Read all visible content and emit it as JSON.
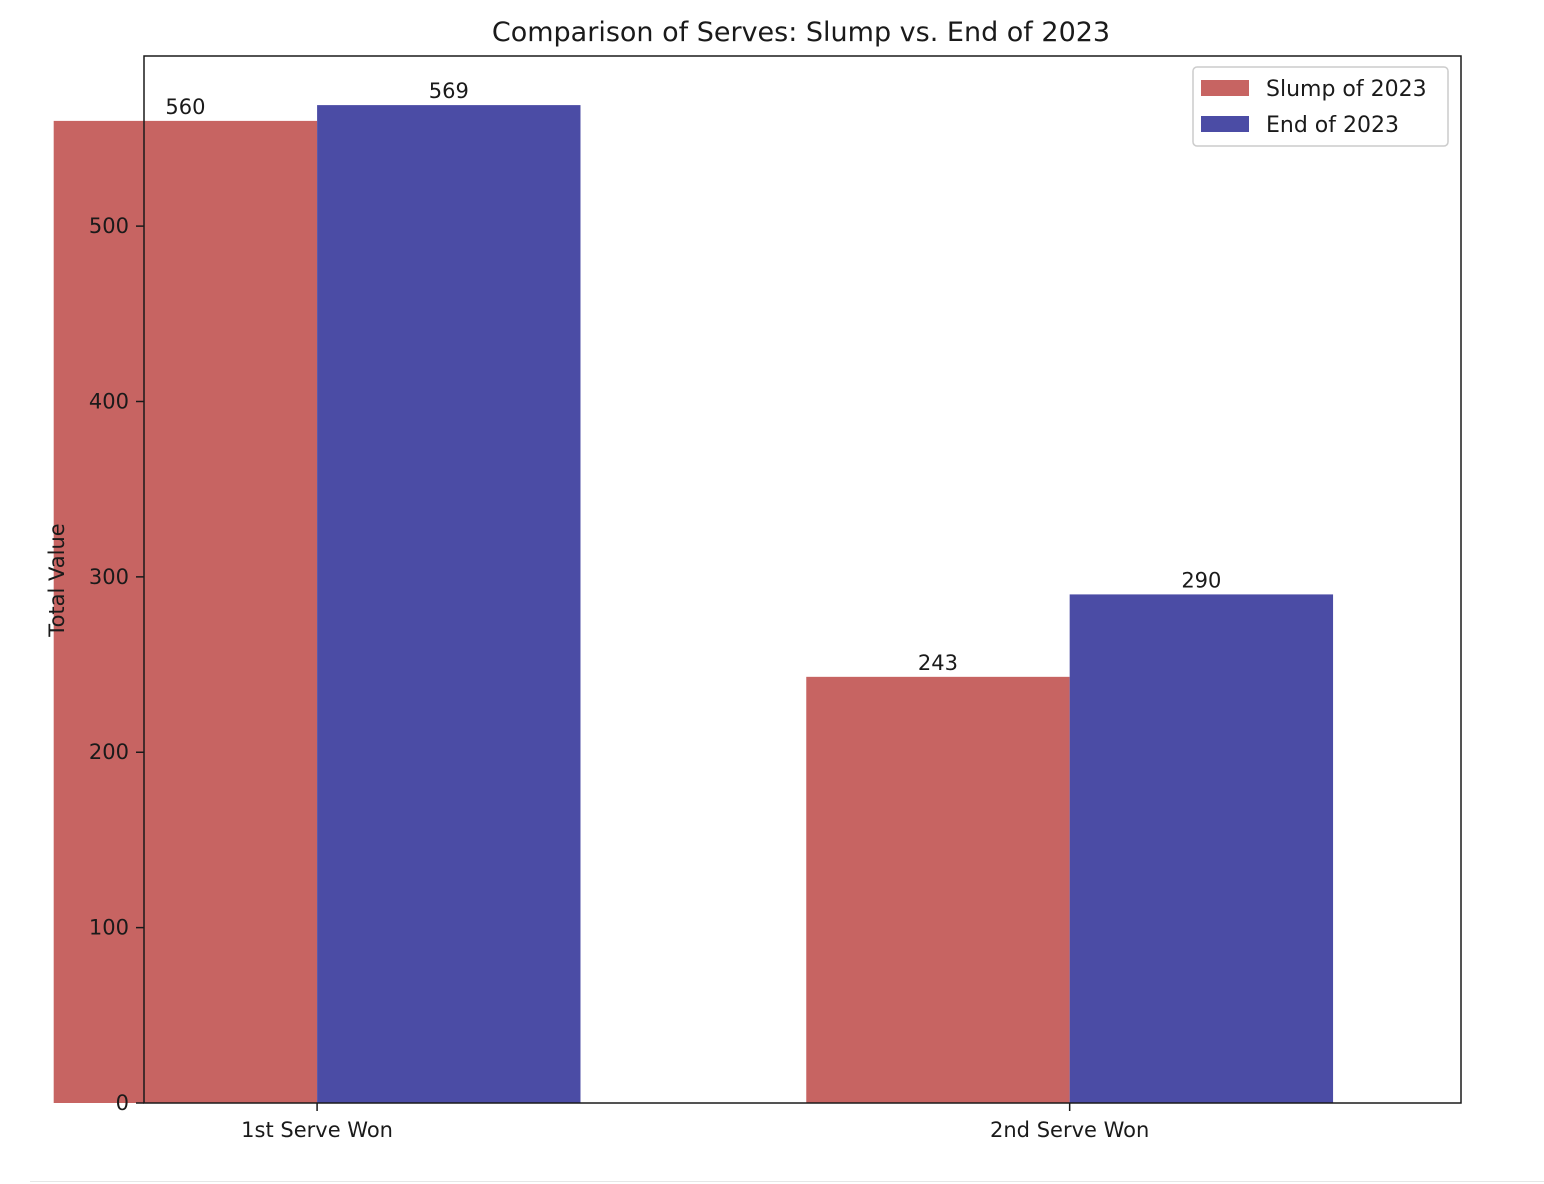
{
  "chart_data": {
    "type": "bar",
    "title": "Comparison of Serves: Slump vs. End of 2023",
    "xlabel": "",
    "ylabel": "Total Value",
    "categories": [
      "1st Serve Won",
      "2nd Serve Won"
    ],
    "series": [
      {
        "name": "Slump of 2023",
        "values": [
          560,
          243
        ],
        "color": "#c76462"
      },
      {
        "name": "End of 2023",
        "values": [
          569,
          290
        ],
        "color": "#4b4ca5"
      }
    ],
    "ylim": [
      0,
      597
    ],
    "yticks": [
      0,
      100,
      200,
      300,
      400,
      500
    ],
    "grid": false,
    "legend": "top-right"
  }
}
